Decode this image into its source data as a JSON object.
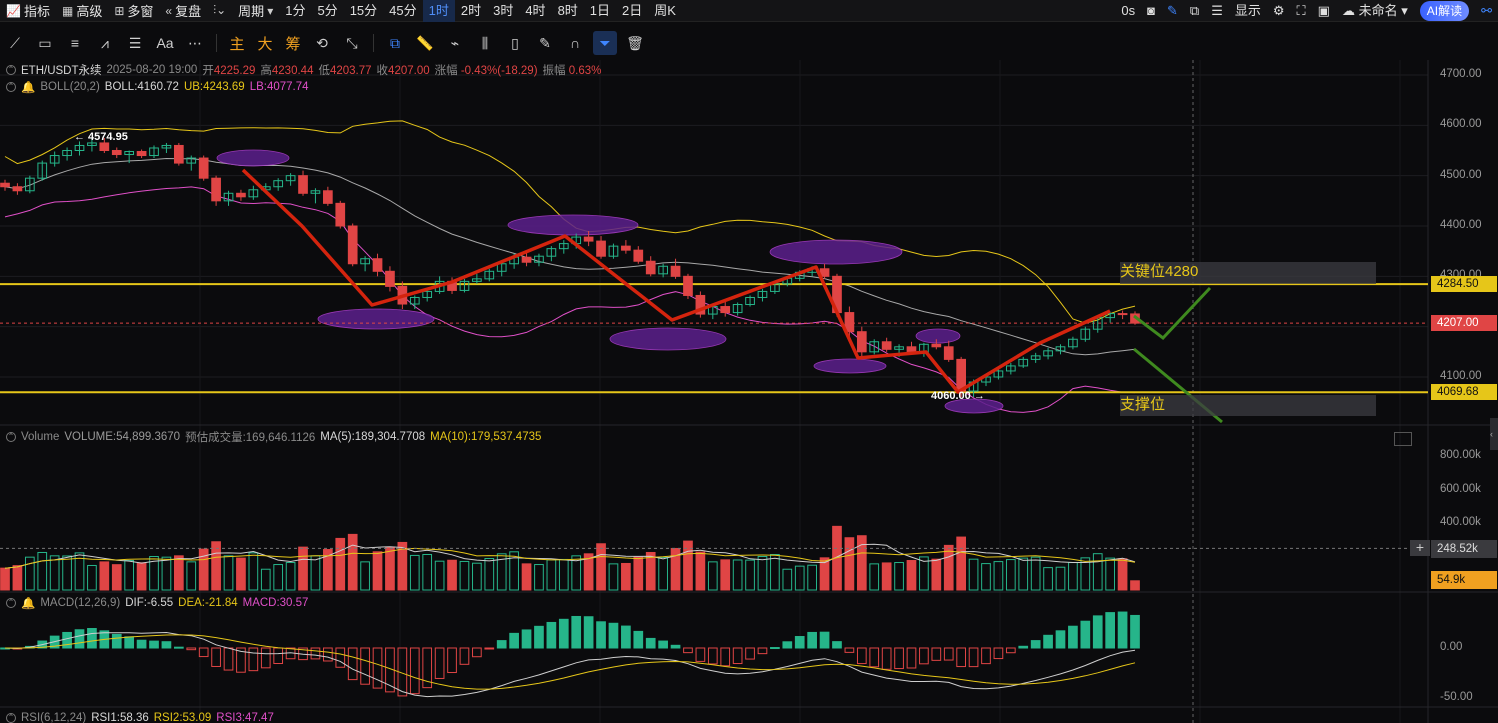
{
  "toolbar": {
    "items": [
      {
        "icon": "indicator-icon",
        "label": "指标"
      },
      {
        "icon": "calendar-icon",
        "label": "高级"
      },
      {
        "icon": "window-icon",
        "label": "多窗"
      },
      {
        "icon": "rewind-icon",
        "label": "复盘"
      },
      {
        "icon": "candle-type-icon",
        "label": ""
      },
      {
        "icon": "",
        "label": "周期"
      }
    ],
    "intervals": [
      "1分",
      "5分",
      "15分",
      "45分",
      "1时",
      "2时",
      "3时",
      "4时",
      "8时",
      "1日",
      "2日",
      "周K"
    ],
    "active_interval": "1时",
    "right": {
      "countdown": "0s",
      "display": "显示",
      "workspace": "未命名",
      "ai": "AI解读"
    }
  },
  "drawing_tools": {
    "left_icons": [
      "trend-line-icon",
      "rectangle-icon",
      "parallel-lines-icon",
      "wave-icon",
      "fib-icon",
      "text-icon",
      "more-icon"
    ],
    "chips": [
      "主",
      "大",
      "筹"
    ],
    "right_icons": [
      "sync-icon",
      "measure-icon",
      "magnet-icon",
      "ruler-icon",
      "brush-icon",
      "candles-icon",
      "clipboard-icon",
      "note-icon",
      "hide-icon",
      "filter-icon",
      "trash-icon"
    ]
  },
  "info": {
    "symbol": "ETH/USDT永续",
    "datetime": "2025-08-20 19:00",
    "open_label": "开",
    "open": "4225.29",
    "high_label": "高",
    "high": "4230.44",
    "low_label": "低",
    "low": "4203.77",
    "close_label": "收",
    "close": "4207.00",
    "change_label": "涨幅",
    "change": "-0.43%(-18.29)",
    "amp_label": "振幅",
    "amp": "0.63%",
    "boll_name": "BOLL(20,2)",
    "boll": "BOLL:4160.72",
    "ub": "UB:4243.69",
    "lb": "LB:4077.74"
  },
  "volume_info": {
    "name": "Volume",
    "volume": "VOLUME:54,899.3670",
    "est": "预估成交量:169,646.1126",
    "ma5": "MA(5):189,304.7708",
    "ma10": "MA(10):179,537.4735"
  },
  "macd_info": {
    "name": "MACD(12,26,9)",
    "dif": "DIF:-6.55",
    "dea": "DEA:-21.84",
    "macd": "MACD:30.57"
  },
  "rsi_info": {
    "name": "RSI(6,12,24)",
    "rsi1": "RSI1:58.36",
    "rsi2": "RSI2:53.09",
    "rsi3": "RSI3:47.47"
  },
  "annotations": {
    "key_level": "关键位4280",
    "support": "支撑位",
    "high_mark": "← 4574.95",
    "low_mark": "4060.00 →"
  },
  "price_axis": {
    "ticks": [
      "4700.00",
      "4600.00",
      "4500.00",
      "4400.00",
      "4300.00",
      "4100.00"
    ],
    "tags": [
      {
        "label": "4284.50",
        "value": 4284.5,
        "color": "#e6c619"
      },
      {
        "label": "4207.00",
        "value": 4207,
        "color": "#e04545"
      },
      {
        "label": "4069.68",
        "value": 4069.68,
        "color": "#e6c619"
      }
    ]
  },
  "volume_axis": {
    "ticks": [
      "800.00k",
      "600.00k",
      "400.00k"
    ],
    "tags": [
      {
        "label": "248.52k",
        "value": 248.52,
        "color": "#3a3a3e"
      },
      {
        "label": "54.9k",
        "value": 54.9,
        "color": "#f0a020"
      }
    ]
  },
  "macd_axis": {
    "ticks": [
      "0.00",
      "-50.00"
    ]
  },
  "colors": {
    "up": "#26b58a",
    "down": "#e04545",
    "boll_mid": "#cfcfcf",
    "boll_ub": "#e6c619",
    "boll_lb": "#e050c8",
    "hline": "#e6c619",
    "trend": "#d4240e",
    "projection": "#3f8a1f",
    "ellipse": "#5b1f8c"
  },
  "chart_data": {
    "type": "candlestick",
    "interval": "1时",
    "candles": [
      [
        4485,
        4492,
        4470,
        4478
      ],
      [
        4478,
        4485,
        4462,
        4470
      ],
      [
        4470,
        4500,
        4465,
        4495
      ],
      [
        4495,
        4530,
        4490,
        4525
      ],
      [
        4525,
        4548,
        4518,
        4540
      ],
      [
        4540,
        4556,
        4530,
        4550
      ],
      [
        4550,
        4568,
        4540,
        4560
      ],
      [
        4560,
        4575,
        4548,
        4565
      ],
      [
        4565,
        4574.95,
        4545,
        4550
      ],
      [
        4550,
        4556,
        4535,
        4542
      ],
      [
        4542,
        4550,
        4525,
        4548
      ],
      [
        4548,
        4552,
        4535,
        4540
      ],
      [
        4540,
        4560,
        4535,
        4555
      ],
      [
        4555,
        4565,
        4545,
        4560
      ],
      [
        4560,
        4565,
        4520,
        4525
      ],
      [
        4525,
        4540,
        4510,
        4535
      ],
      [
        4535,
        4540,
        4490,
        4495
      ],
      [
        4495,
        4500,
        4440,
        4450
      ],
      [
        4450,
        4470,
        4440,
        4465
      ],
      [
        4465,
        4472,
        4450,
        4458
      ],
      [
        4458,
        4480,
        4452,
        4472
      ],
      [
        4472,
        4485,
        4465,
        4478
      ],
      [
        4478,
        4495,
        4470,
        4490
      ],
      [
        4490,
        4505,
        4480,
        4500
      ],
      [
        4500,
        4510,
        4460,
        4465
      ],
      [
        4465,
        4475,
        4445,
        4470
      ],
      [
        4470,
        4478,
        4440,
        4445
      ],
      [
        4445,
        4450,
        4395,
        4400
      ],
      [
        4400,
        4405,
        4320,
        4325
      ],
      [
        4325,
        4340,
        4310,
        4335
      ],
      [
        4335,
        4345,
        4300,
        4310
      ],
      [
        4310,
        4320,
        4270,
        4280
      ],
      [
        4280,
        4290,
        4235,
        4245
      ],
      [
        4245,
        4262,
        4235,
        4258
      ],
      [
        4258,
        4275,
        4250,
        4270
      ],
      [
        4270,
        4300,
        4265,
        4290
      ],
      [
        4290,
        4298,
        4265,
        4272
      ],
      [
        4272,
        4295,
        4268,
        4290
      ],
      [
        4290,
        4305,
        4285,
        4295
      ],
      [
        4295,
        4315,
        4290,
        4310
      ],
      [
        4310,
        4330,
        4300,
        4325
      ],
      [
        4325,
        4345,
        4315,
        4338
      ],
      [
        4338,
        4350,
        4320,
        4328
      ],
      [
        4328,
        4345,
        4320,
        4340
      ],
      [
        4340,
        4360,
        4330,
        4355
      ],
      [
        4355,
        4372,
        4345,
        4365
      ],
      [
        4365,
        4385,
        4355,
        4378
      ],
      [
        4378,
        4390,
        4360,
        4370
      ],
      [
        4370,
        4380,
        4335,
        4340
      ],
      [
        4340,
        4365,
        4335,
        4360
      ],
      [
        4360,
        4372,
        4345,
        4352
      ],
      [
        4352,
        4360,
        4325,
        4330
      ],
      [
        4330,
        4340,
        4300,
        4305
      ],
      [
        4305,
        4325,
        4298,
        4320
      ],
      [
        4320,
        4335,
        4295,
        4300
      ],
      [
        4300,
        4305,
        4255,
        4262
      ],
      [
        4262,
        4270,
        4218,
        4225
      ],
      [
        4225,
        4245,
        4215,
        4240
      ],
      [
        4240,
        4250,
        4220,
        4228
      ],
      [
        4228,
        4248,
        4222,
        4244
      ],
      [
        4244,
        4262,
        4240,
        4258
      ],
      [
        4258,
        4275,
        4250,
        4270
      ],
      [
        4270,
        4290,
        4265,
        4285
      ],
      [
        4285,
        4300,
        4280,
        4296
      ],
      [
        4296,
        4312,
        4290,
        4308
      ],
      [
        4308,
        4320,
        4300,
        4315
      ],
      [
        4315,
        4325,
        4295,
        4300
      ],
      [
        4300,
        4305,
        4220,
        4228
      ],
      [
        4228,
        4240,
        4180,
        4190
      ],
      [
        4190,
        4200,
        4140,
        4150
      ],
      [
        4150,
        4175,
        4145,
        4170
      ],
      [
        4170,
        4178,
        4150,
        4155
      ],
      [
        4155,
        4165,
        4140,
        4160
      ],
      [
        4160,
        4170,
        4145,
        4148
      ],
      [
        4148,
        4168,
        4140,
        4165
      ],
      [
        4165,
        4175,
        4155,
        4160
      ],
      [
        4160,
        4172,
        4130,
        4135
      ],
      [
        4135,
        4140,
        4060,
        4072
      ],
      [
        4072,
        4095,
        4060,
        4090
      ],
      [
        4090,
        4105,
        4082,
        4100
      ],
      [
        4100,
        4118,
        4095,
        4112
      ],
      [
        4112,
        4128,
        4105,
        4122
      ],
      [
        4122,
        4140,
        4118,
        4135
      ],
      [
        4135,
        4148,
        4128,
        4142
      ],
      [
        4142,
        4158,
        4135,
        4152
      ],
      [
        4152,
        4165,
        4145,
        4160
      ],
      [
        4160,
        4180,
        4155,
        4175
      ],
      [
        4175,
        4200,
        4170,
        4195
      ],
      [
        4195,
        4222,
        4188,
        4218
      ],
      [
        4218,
        4230,
        4208,
        4226
      ],
      [
        4226,
        4232,
        4215,
        4225
      ],
      [
        4225.29,
        4230.44,
        4203.77,
        4207
      ]
    ],
    "boll": {
      "mid": "BOLL:4160.72",
      "ub": "UB:4243.69",
      "lb": "LB:4077.74"
    },
    "horizontal_lines": [
      4284.5,
      4069.68
    ]
  }
}
